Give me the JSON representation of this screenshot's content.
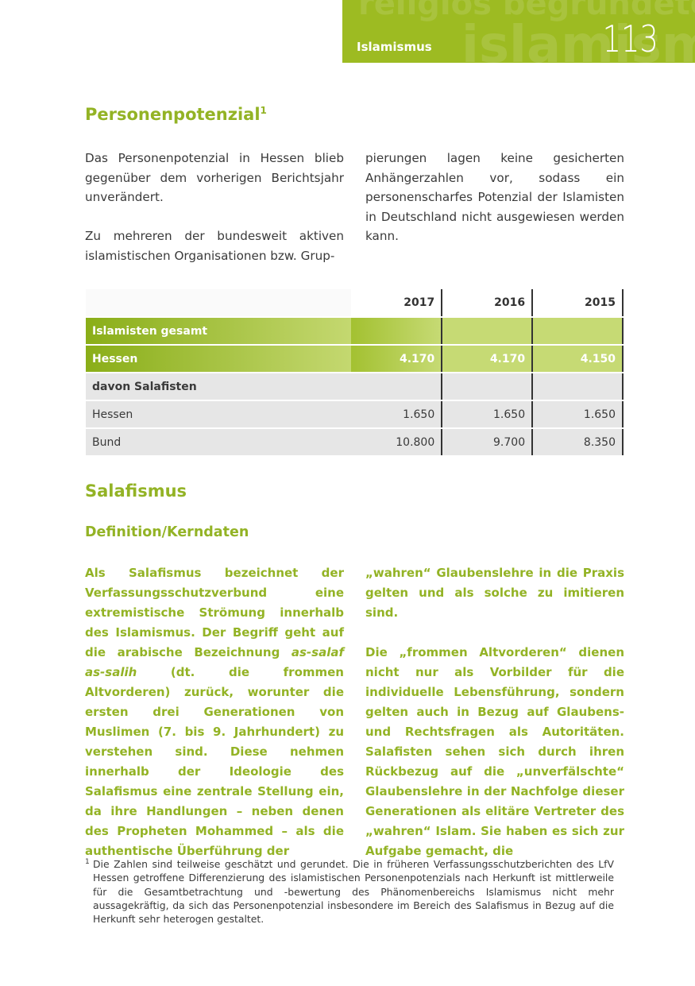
{
  "header": {
    "section": "Islamismus",
    "page_number": "113",
    "watermark_lines": [
      "religiös begründeten",
      "islamismus"
    ],
    "accent": "#9dbb22"
  },
  "section1": {
    "title": "Personenpotenzial",
    "footnote_ref": "1",
    "left": [
      "Das Personenpotenzial in Hessen blieb gegenüber dem vorherigen Berichtsjahr unverändert.",
      "Zu mehreren der bundesweit aktiven islamistischen Organisationen bzw. Grup-"
    ],
    "right": [
      "pierungen lagen keine gesicherten Anhängerzahlen vor, sodass ein personenscharfes Potenzial der Islamisten in Deutschland nicht ausgewiesen werden kann."
    ]
  },
  "table": {
    "columns": [
      "",
      "2017",
      "2016",
      "2015"
    ],
    "rows": [
      {
        "label": "Islamisten gesamt",
        "values": [
          "",
          "",
          ""
        ],
        "style": "green"
      },
      {
        "label": "Hessen",
        "values": [
          "4.170",
          "4.170",
          "4.150"
        ],
        "style": "green"
      },
      {
        "label": "davon Salafisten",
        "values": [
          "",
          "",
          ""
        ],
        "style": "grey-bold"
      },
      {
        "label": "Hessen",
        "values": [
          "1.650",
          "1.650",
          "1.650"
        ],
        "style": "grey"
      },
      {
        "label": "Bund",
        "values": [
          "10.800",
          "9.700",
          "8.350"
        ],
        "style": "grey"
      }
    ]
  },
  "section2": {
    "title": "Salafismus",
    "subtitle": "Definition/Kerndaten",
    "left_pre": "Als Salafismus bezeichnet der Verfassungsschutzverbund eine extremistische Strömung innerhalb des Islamismus. Der Begriff geht auf die arabische Bezeichnung ",
    "left_italic": "as-salaf as-salih",
    "left_post": " (dt. die frommen Altvorderen) zurück, worunter die ersten drei Generationen von Muslimen (7. bis 9. Jahrhundert) zu verstehen sind. Diese nehmen innerhalb der Ideologie des Salafismus eine zentrale Stellung ein, da ihre Handlungen – neben denen des Propheten Mohammed – als die authentische Überführung der",
    "right": [
      "„wahren“ Glaubenslehre in die Praxis gelten und als solche zu imitieren sind.",
      "Die „frommen Altvorderen“ dienen nicht nur als Vorbilder für die individuelle Lebensführung, sondern gelten auch in Bezug auf Glaubens- und Rechtsfragen als Autoritäten. Salafisten sehen sich durch ihren Rückbezug auf die „unverfälschte“ Glaubenslehre in der Nachfolge dieser Generationen als elitäre Vertreter des „wahren“ Islam. Sie haben es sich zur Aufgabe gemacht, die"
    ]
  },
  "footnote": {
    "number": "1",
    "text": "Die Zahlen sind teilweise geschätzt und gerundet. Die in früheren Verfassungsschutzberichten des LfV Hessen getroffene Differenzierung des islamistischen Personenpotenzials nach Herkunft ist mittlerweile für die Gesamtbetrachtung und -bewertung des Phänomenbereichs Islamismus nicht mehr aussagekräftig, da sich das Personenpotenzial insbesondere im Bereich des Salafismus in Bezug auf die Herkunft sehr heterogen gestaltet."
  }
}
